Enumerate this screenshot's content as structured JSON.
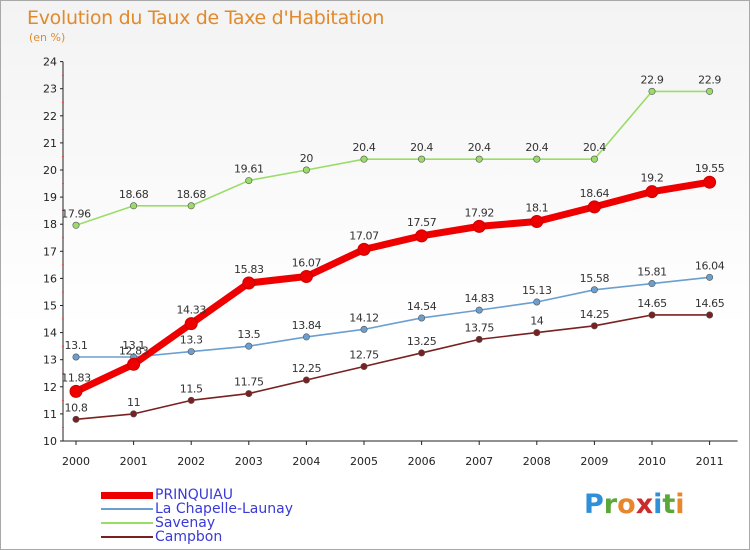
{
  "title": "Evolution du Taux de Taxe d'Habitation",
  "unit_label": "(en %)",
  "logo": {
    "letters": [
      "P",
      "r",
      "o",
      "x",
      "i",
      "t",
      "i"
    ],
    "colors": [
      "#2f8fd8",
      "#5aa838",
      "#e9862b",
      "#cc2b2b",
      "#2f8fd8",
      "#5aa838",
      "#e9862b"
    ]
  },
  "chart_data": {
    "type": "line",
    "x": [
      "2000",
      "2001",
      "2002",
      "2003",
      "2004",
      "2005",
      "2006",
      "2007",
      "2008",
      "2009",
      "2010",
      "2011"
    ],
    "y_ticks": [
      "10",
      "11",
      "12",
      "13",
      "14",
      "15",
      "16",
      "17",
      "18",
      "19",
      "20",
      "21",
      "22",
      "23",
      "24"
    ],
    "ylim": [
      10,
      24
    ],
    "grid": false,
    "legend_position": "bottom-left",
    "series": [
      {
        "name": "PRINQUIAU",
        "color": "#ee0000",
        "values": [
          11.83,
          12.83,
          14.33,
          15.83,
          16.07,
          17.07,
          17.57,
          17.92,
          18.1,
          18.64,
          19.2,
          19.55
        ],
        "labels": [
          "11.83",
          "12.83",
          "14.33",
          "15.83",
          "16.07",
          "17.07",
          "17.57",
          "17.92",
          "18.1",
          "18.64",
          "19.2",
          "19.55"
        ]
      },
      {
        "name": "La Chapelle-Launay",
        "color": "#6a9fd0",
        "values": [
          13.1,
          13.1,
          13.3,
          13.5,
          13.84,
          14.12,
          14.54,
          14.83,
          15.13,
          15.58,
          15.81,
          16.04
        ],
        "labels": [
          "13.1",
          "13.1",
          "13.3",
          "13.5",
          "13.84",
          "14.12",
          "14.54",
          "14.83",
          "15.13",
          "15.58",
          "15.81",
          "16.04"
        ]
      },
      {
        "name": "Savenay",
        "color": "#99dd66",
        "values": [
          17.96,
          18.68,
          18.68,
          19.61,
          20,
          20.4,
          20.4,
          20.4,
          20.4,
          20.4,
          22.9,
          22.9
        ],
        "labels": [
          "17.96",
          "18.68",
          "18.68",
          "19.61",
          "20",
          "20.4",
          "20.4",
          "20.4",
          "20.4",
          "20.4",
          "22.9",
          "22.9"
        ]
      },
      {
        "name": "Campbon",
        "color": "#7a2020",
        "values": [
          10.8,
          11,
          11.5,
          11.75,
          12.25,
          12.75,
          13.25,
          13.75,
          14,
          14.25,
          14.65,
          14.65
        ],
        "labels": [
          "10.8",
          "11",
          "11.5",
          "11.75",
          "12.25",
          "12.75",
          "13.25",
          "13.75",
          "14",
          "14.25",
          "14.65",
          "14.65"
        ]
      }
    ]
  }
}
